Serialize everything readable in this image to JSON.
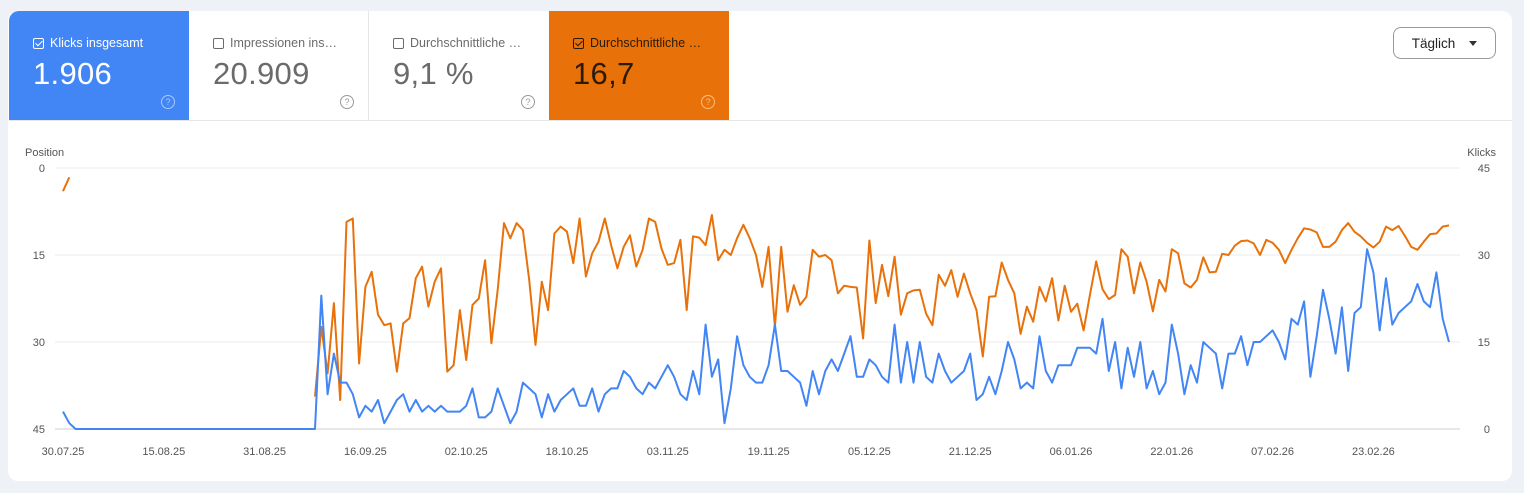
{
  "metrics": [
    {
      "label": "Klicks insgesamt",
      "value": "1.906",
      "checked": true,
      "color": "#4285f4"
    },
    {
      "label": "Impressionen ins…",
      "value": "20.909",
      "checked": false
    },
    {
      "label": "Durchschnittliche …",
      "value": "9,1 %",
      "checked": false
    },
    {
      "label": "Durchschnittliche …",
      "value": "16,7",
      "checked": true,
      "color": "#e8710a"
    }
  ],
  "help_glyph": "?",
  "granularity": {
    "selected": "Täglich",
    "icon": "caret-down-icon"
  },
  "chart_data": {
    "type": "line",
    "grid": true,
    "left_axis": {
      "label": "Position",
      "reversed": true,
      "range": [
        0,
        45
      ],
      "ticks": [
        "0",
        "15",
        "30",
        "45"
      ]
    },
    "right_axis": {
      "label": "Klicks",
      "range": [
        0,
        45
      ],
      "ticks": [
        "45",
        "30",
        "15",
        "0"
      ]
    },
    "x_tick_labels": [
      "30.07.25",
      "15.08.25",
      "31.08.25",
      "16.09.25",
      "02.10.25",
      "18.10.25",
      "03.11.25",
      "19.11.25",
      "05.12.25",
      "21.12.25",
      "06.01.26",
      "22.01.26",
      "07.02.26",
      "23.02.26"
    ],
    "x_tick_interval_days": 16,
    "series": [
      {
        "name": "Klicks",
        "axis": "right",
        "color": "#4285f4",
        "values": [
          3,
          1,
          0,
          0,
          0,
          0,
          0,
          0,
          0,
          0,
          0,
          0,
          0,
          0,
          0,
          0,
          0,
          0,
          0,
          0,
          0,
          0,
          0,
          0,
          0,
          0,
          0,
          0,
          0,
          0,
          0,
          0,
          0,
          0,
          0,
          0,
          0,
          0,
          0,
          0,
          0,
          23,
          6,
          13,
          8,
          8,
          6,
          2,
          4,
          3,
          5,
          1,
          3,
          5,
          6,
          3,
          5,
          3,
          4,
          3,
          4,
          3,
          3,
          3,
          4,
          7,
          2,
          2,
          3,
          7,
          4,
          1,
          3,
          8,
          7,
          6,
          2,
          6,
          3,
          5,
          6,
          7,
          4,
          4,
          7,
          3,
          6,
          7,
          7,
          10,
          9,
          7,
          6,
          8,
          7,
          9,
          11,
          9,
          6,
          5,
          10,
          6,
          18,
          9,
          12,
          1,
          7,
          16,
          11,
          9,
          8,
          8,
          11,
          18,
          10,
          10,
          9,
          8,
          4,
          10,
          6,
          10,
          12,
          10,
          13,
          16,
          9,
          9,
          12,
          11,
          9,
          8,
          18,
          8,
          15,
          8,
          15,
          9,
          8,
          13,
          10,
          8,
          9,
          10,
          13,
          5,
          6,
          9,
          6,
          10,
          15,
          12,
          7,
          8,
          7,
          16,
          10,
          8,
          11,
          11,
          11,
          14,
          14,
          14,
          13,
          19,
          10,
          15,
          7,
          14,
          9,
          15,
          7,
          10,
          6,
          8,
          18,
          13,
          6,
          11,
          8,
          15,
          14,
          13,
          7,
          13,
          13,
          16,
          11,
          15,
          15,
          16,
          17,
          15,
          12,
          19,
          18,
          22,
          9,
          16,
          24,
          19,
          13,
          21,
          10,
          20,
          21,
          31,
          27,
          17,
          26,
          18,
          20,
          21,
          22,
          25,
          22,
          21,
          27,
          19,
          15
        ]
      },
      {
        "name": "Position",
        "axis": "left",
        "color": "#e8710a",
        "values": [
          4.0,
          1.6,
          null,
          null,
          null,
          null,
          null,
          null,
          null,
          null,
          null,
          null,
          null,
          null,
          null,
          null,
          null,
          null,
          null,
          null,
          null,
          null,
          null,
          null,
          null,
          null,
          null,
          null,
          null,
          null,
          null,
          null,
          null,
          null,
          null,
          null,
          null,
          null,
          null,
          null,
          39.4,
          27.4,
          35.4,
          23.3,
          40,
          9.3,
          8.7,
          33.7,
          20.5,
          17.9,
          25.3,
          27.1,
          26.8,
          35.1,
          26.8,
          25.9,
          19,
          17,
          23.9,
          19.6,
          17.3,
          35.1,
          34,
          24.5,
          33.1,
          23.6,
          22.5,
          15.9,
          30.2,
          21,
          9.5,
          12.1,
          9.5,
          10.7,
          19.3,
          30.5,
          19.6,
          24.5,
          11.3,
          10.1,
          11,
          16.4,
          8.7,
          18.7,
          14.7,
          12.7,
          8.7,
          13.3,
          17.3,
          13.6,
          11.6,
          17,
          14.1,
          8.7,
          9.3,
          13.9,
          16.7,
          16.4,
          12.4,
          24.5,
          11.8,
          12,
          13.3,
          8.1,
          15.9,
          14.1,
          15,
          12.1,
          9.8,
          12.1,
          15,
          20.5,
          13.6,
          27.4,
          13.6,
          24.8,
          20.2,
          23.6,
          22.2,
          14.1,
          15.3,
          15.0,
          15.9,
          21.6,
          20.3,
          20.5,
          20.6,
          29.4,
          12.5,
          23.3,
          16.7,
          22.1,
          15.3,
          25.3,
          21.6,
          21.1,
          21.0,
          25.1,
          27.1,
          18.4,
          20.3,
          17.6,
          22.2,
          18.2,
          21.6,
          24.5,
          32.5,
          22.2,
          22.1,
          16.3,
          19.3,
          21.6,
          28.6,
          23.9,
          26.5,
          20.5,
          23.0,
          19.0,
          26.3,
          20.3,
          24.8,
          23.4,
          28.0,
          21.9,
          16.1,
          20.9,
          22.6,
          21.9,
          14.0,
          15.3,
          21.6,
          16.3,
          19.6,
          24.7,
          19.3,
          21.3,
          14.0,
          14.7,
          19.9,
          20.6,
          19.3,
          15.4,
          18.0,
          17.9,
          14.8,
          15.0,
          13.4,
          12.6,
          12.5,
          13.0,
          15.0,
          12.4,
          12.9,
          14.1,
          16.4,
          14.1,
          12.1,
          10.4,
          10.6,
          11.1,
          13.6,
          13.6,
          12.7,
          10.7,
          9.5,
          11.0,
          11.8,
          12.9,
          13.7,
          12.7,
          10.1,
          10.7,
          10.0,
          11.7,
          13.6,
          14.1,
          12.7,
          11.4,
          11.3,
          10.1,
          9.9
        ]
      }
    ]
  }
}
